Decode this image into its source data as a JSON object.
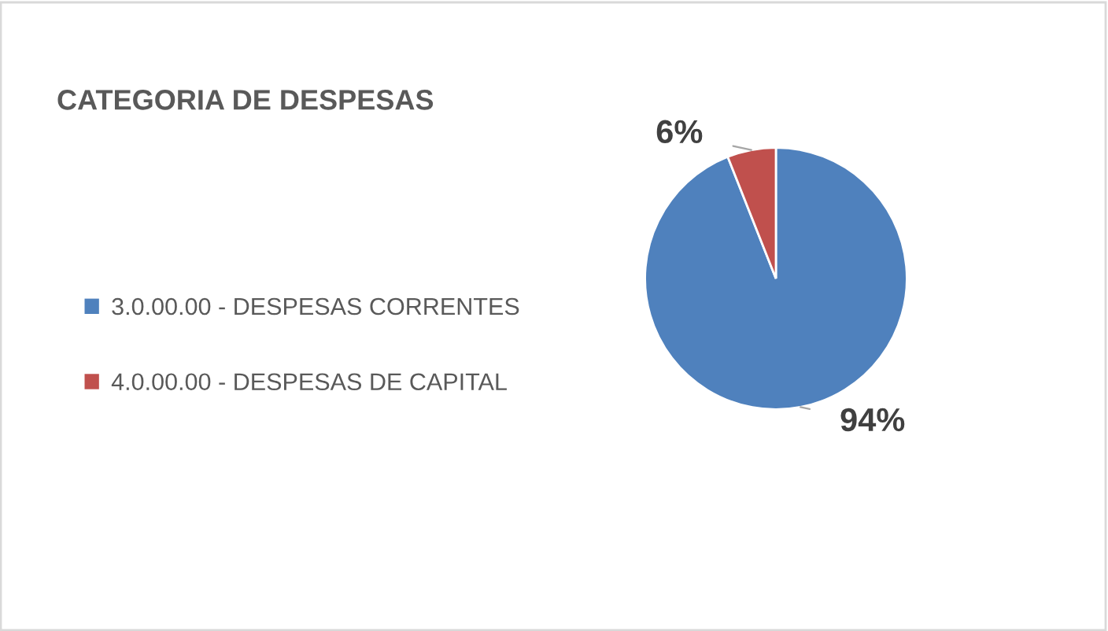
{
  "chart_data": {
    "type": "pie",
    "title": "CATEGORIA DE DESPESAS",
    "categories": [
      "3.0.00.00 - DESPESAS CORRENTES",
      "4.0.00.00 - DESPESAS DE CAPITAL"
    ],
    "values": [
      94,
      6
    ],
    "colors": [
      "#4f81bd",
      "#c0504d"
    ],
    "value_labels": [
      "94%",
      "6%"
    ],
    "legend": "left"
  }
}
